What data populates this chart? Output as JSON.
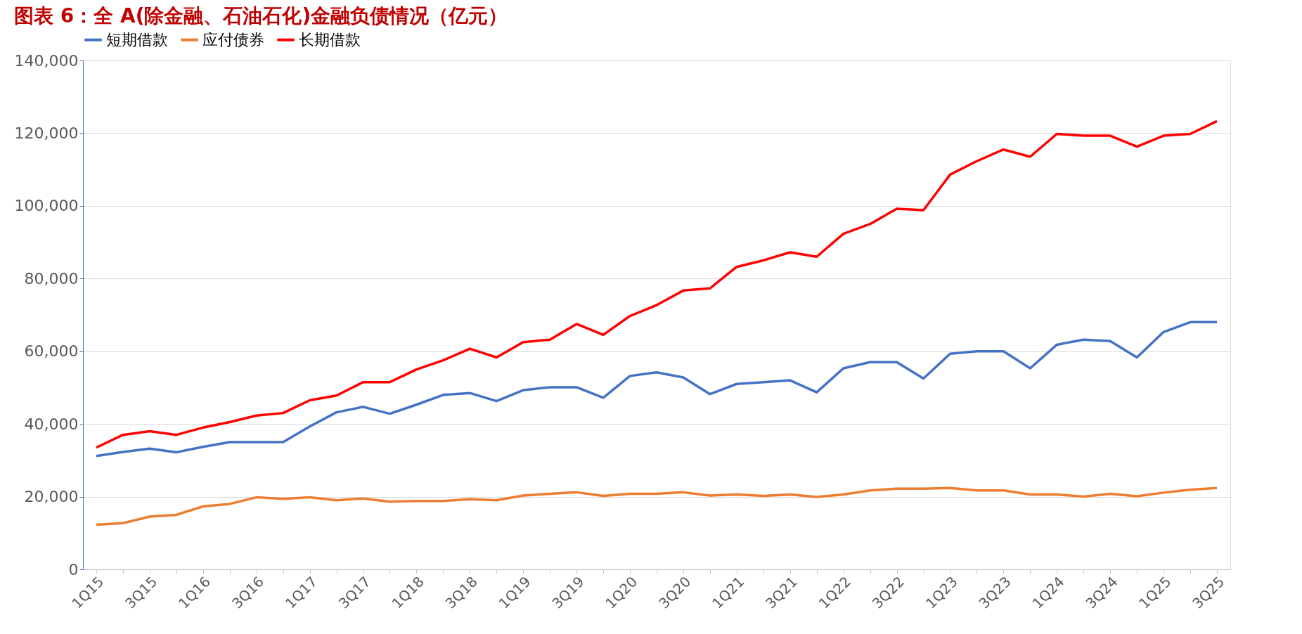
{
  "chart_data": {
    "type": "line",
    "title": "图表 6：全 A(除金融、石油石化)金融负债情况（亿元）",
    "categories": [
      "1Q15",
      null,
      "3Q15",
      null,
      "1Q16",
      null,
      "3Q16",
      null,
      "1Q17",
      null,
      "3Q17",
      null,
      "1Q18",
      null,
      "3Q18",
      null,
      "1Q19",
      null,
      "3Q19",
      null,
      "1Q20",
      null,
      "3Q20",
      null,
      "1Q21",
      null,
      "3Q21",
      null,
      "1Q22",
      null,
      "3Q22",
      null,
      "1Q23",
      null,
      "3Q23",
      null,
      "1Q24",
      null,
      "3Q24",
      null,
      "1Q25",
      null,
      "3Q25"
    ],
    "series": [
      {
        "name": "短期借款",
        "color": "#4472c4",
        "values": [
          31200,
          32300,
          33200,
          32200,
          33700,
          35000,
          35000,
          35000,
          39300,
          43200,
          44700,
          42800,
          45300,
          48000,
          48500,
          46300,
          49300,
          50100,
          50100,
          47200,
          53200,
          54200,
          52800,
          48200,
          51000,
          51500,
          52000,
          48700,
          55300,
          57000,
          57000,
          52500,
          59300,
          60000,
          60000,
          55300,
          61800,
          63200,
          62800,
          58300,
          65300,
          68000,
          68000
        ]
      },
      {
        "name": "应付债券",
        "color": "#ed7d31",
        "values": [
          12300,
          12700,
          14500,
          15000,
          17300,
          18000,
          19800,
          19400,
          19800,
          19000,
          19500,
          18600,
          18800,
          18800,
          19300,
          19000,
          20300,
          20800,
          21200,
          20200,
          20800,
          20800,
          21200,
          20300,
          20600,
          20200,
          20600,
          19900,
          20600,
          21700,
          22200,
          22200,
          22400,
          21700,
          21700,
          20600,
          20600,
          20000,
          20800,
          20100,
          21100,
          21900,
          22400
        ]
      },
      {
        "name": "长期借款",
        "color": "#ff0000",
        "values": [
          33500,
          37000,
          38000,
          37000,
          39000,
          40500,
          42300,
          43000,
          46500,
          47800,
          51500,
          51500,
          55000,
          57500,
          60700,
          58300,
          62500,
          63200,
          67500,
          64500,
          69700,
          72700,
          76700,
          77300,
          83200,
          85000,
          87200,
          86000,
          92300,
          95000,
          99200,
          98800,
          108600,
          112300,
          115500,
          113500,
          119800,
          119300,
          119300,
          116300,
          119300,
          119800,
          123300
        ]
      }
    ],
    "ylim": [
      0,
      140000
    ],
    "yticks": [
      0,
      {
        "value": 20000,
        "label": "20,000"
      },
      {
        "value": 40000,
        "label": "40,000"
      },
      {
        "value": 60000,
        "label": "60,000"
      },
      {
        "value": 80000,
        "label": "80,000"
      },
      {
        "value": 100000,
        "label": "100,000"
      },
      {
        "value": 120000,
        "label": "120,000"
      },
      {
        "value": 140000,
        "label": "140,000"
      }
    ],
    "grid": "y",
    "legend": "top",
    "marker": "none",
    "line_style": "solid"
  }
}
